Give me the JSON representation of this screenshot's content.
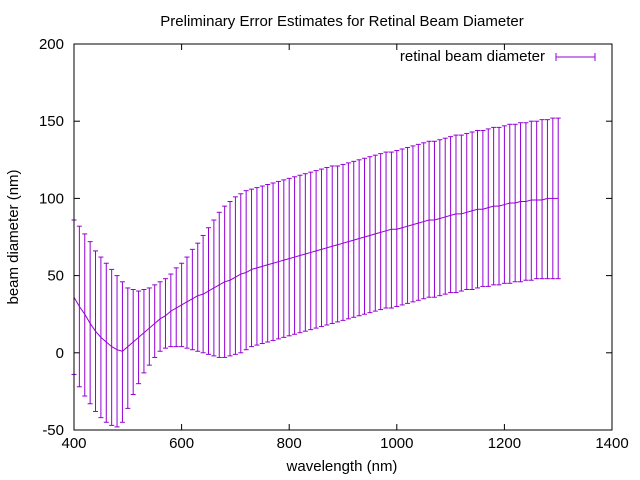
{
  "chart_data": {
    "type": "line",
    "title": "Preliminary Error Estimates for Retinal Beam Diameter",
    "xlabel": "wavelength (nm)",
    "ylabel": "beam diameter (nm)",
    "xlim": [
      400,
      1400
    ],
    "ylim": [
      -50,
      200
    ],
    "xticks": [
      400,
      600,
      800,
      1000,
      1200,
      1400
    ],
    "yticks": [
      -50,
      0,
      50,
      100,
      150,
      200
    ],
    "xtick_labels": [
      "400",
      "600",
      "800",
      "1000",
      "1200",
      "1400"
    ],
    "ytick_labels": [
      "-50",
      "0",
      "50",
      "100",
      "150",
      "200"
    ],
    "legend_position": "top-right",
    "grid": false,
    "series": [
      {
        "name": "retinal beam diameter",
        "color": "#9400d3",
        "style": "errorbars",
        "x_start": 400,
        "x_step": 10,
        "y": [
          36,
          30,
          25,
          19,
          14,
          10,
          7,
          4,
          2,
          1,
          4,
          7,
          10,
          13,
          16,
          19,
          22,
          24,
          27,
          29,
          31,
          33,
          35,
          37,
          38,
          40,
          42,
          44,
          46,
          47,
          49,
          51,
          52,
          54,
          55,
          56,
          57,
          58,
          59,
          60,
          61,
          62,
          63,
          64,
          65,
          66,
          67,
          68,
          69,
          70,
          71,
          72,
          73,
          74,
          75,
          76,
          77,
          78,
          79,
          80,
          80,
          81,
          82,
          83,
          84,
          85,
          86,
          86,
          87,
          88,
          89,
          90,
          90,
          91,
          92,
          93,
          93,
          94,
          95,
          95,
          96,
          97,
          97,
          98,
          98,
          99,
          99,
          99,
          100,
          100,
          100
        ],
        "y_low": [
          -14,
          -22,
          -28,
          -33,
          -38,
          -42,
          -45,
          -47,
          -48,
          -45,
          -36,
          -27,
          -20,
          -13,
          -8,
          -3,
          1,
          3,
          4,
          4,
          4,
          3,
          2,
          1,
          0,
          -1,
          -2,
          -3,
          -3,
          -2,
          -1,
          0,
          2,
          4,
          5,
          6,
          7,
          8,
          9,
          10,
          11,
          12,
          13,
          14,
          15,
          16,
          17,
          18,
          19,
          20,
          21,
          22,
          23,
          24,
          25,
          26,
          27,
          28,
          29,
          29,
          30,
          31,
          32,
          33,
          34,
          35,
          36,
          36,
          37,
          38,
          39,
          39,
          40,
          41,
          41,
          42,
          43,
          43,
          44,
          44,
          45,
          45,
          46,
          46,
          47,
          47,
          48,
          48,
          48,
          48,
          48
        ],
        "y_high": [
          86,
          82,
          77,
          72,
          66,
          62,
          58,
          54,
          50,
          46,
          42,
          41,
          40,
          41,
          42,
          44,
          46,
          48,
          51,
          55,
          58,
          62,
          67,
          71,
          76,
          81,
          86,
          91,
          95,
          98,
          101,
          103,
          105,
          106,
          107,
          108,
          109,
          110,
          111,
          112,
          113,
          114,
          115,
          116,
          117,
          118,
          119,
          120,
          121,
          121,
          122,
          123,
          124,
          125,
          126,
          127,
          128,
          129,
          130,
          130,
          131,
          132,
          133,
          134,
          135,
          136,
          137,
          137,
          138,
          139,
          140,
          141,
          141,
          142,
          143,
          144,
          144,
          145,
          146,
          146,
          147,
          148,
          148,
          149,
          149,
          150,
          150,
          151,
          151,
          152,
          152
        ]
      }
    ]
  }
}
